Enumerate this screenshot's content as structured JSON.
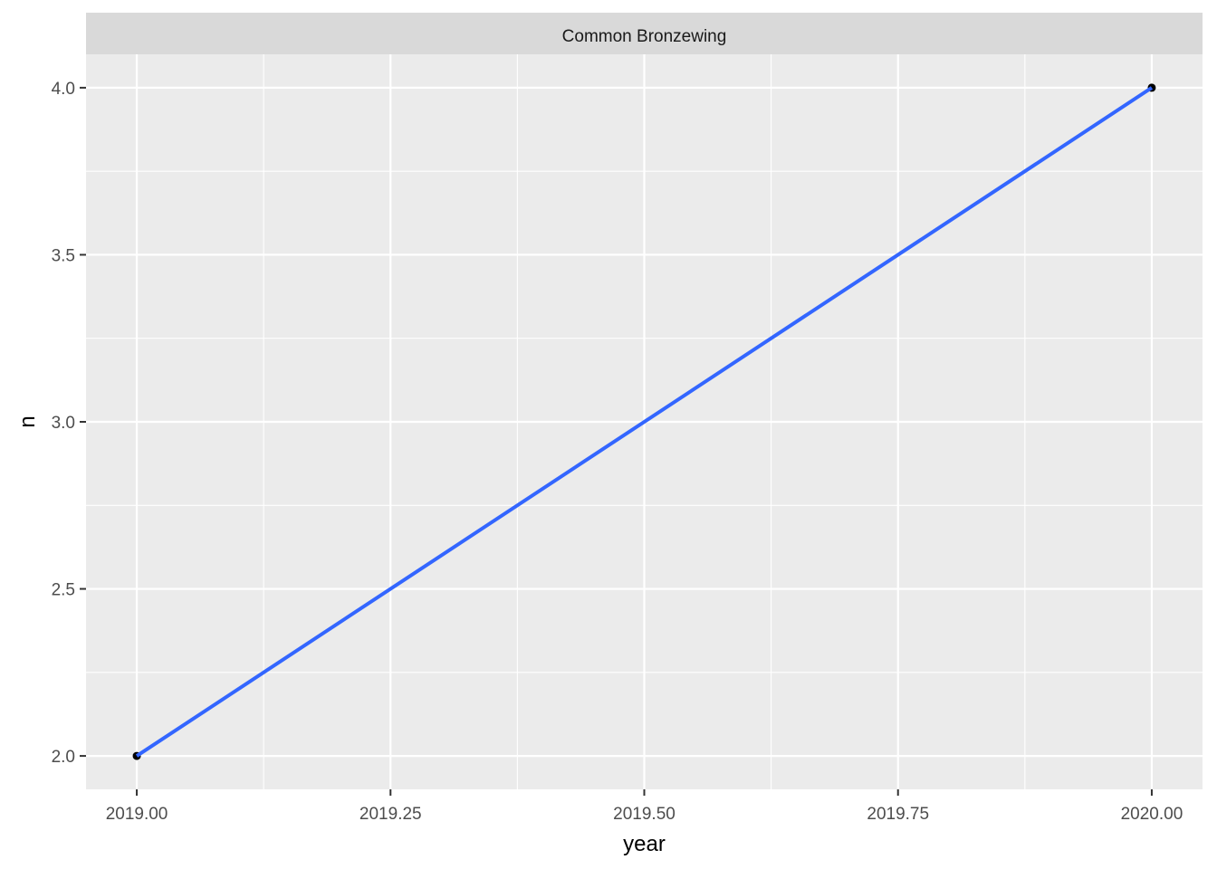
{
  "chart_data": {
    "type": "line",
    "facet_label": "Common Bronzewing",
    "xlabel": "year",
    "ylabel": "n",
    "xlim": [
      2018.95,
      2020.05
    ],
    "ylim": [
      1.9,
      4.1
    ],
    "x_ticks": [
      2019.0,
      2019.25,
      2019.5,
      2019.75,
      2020.0
    ],
    "x_tick_labels": [
      "2019.00",
      "2019.25",
      "2019.50",
      "2019.75",
      "2020.00"
    ],
    "x_minor": [
      2019.125,
      2019.375,
      2019.625,
      2019.875
    ],
    "y_ticks": [
      2.0,
      2.5,
      3.0,
      3.5,
      4.0
    ],
    "y_tick_labels": [
      "2.0",
      "2.5",
      "3.0",
      "3.5",
      "4.0"
    ],
    "y_minor": [
      2.25,
      2.75,
      3.25,
      3.75
    ],
    "grid": true,
    "points": [
      {
        "x": 2019,
        "y": 2
      },
      {
        "x": 2020,
        "y": 4
      }
    ],
    "fit_line": {
      "x": [
        2019,
        2020
      ],
      "y": [
        2,
        4
      ]
    },
    "colors": {
      "panel_bg": "#ebebeb",
      "strip_bg": "#d9d9d9",
      "grid": "#ffffff",
      "line": "#3366ff",
      "point": "#000000"
    }
  }
}
